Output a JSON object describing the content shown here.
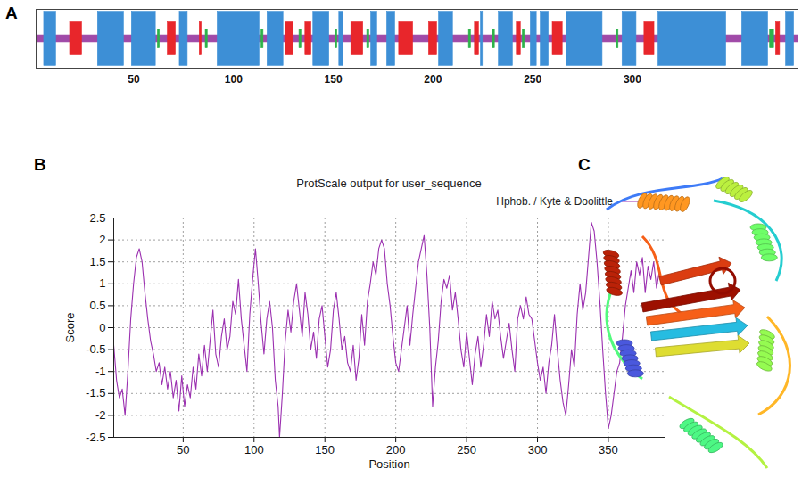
{
  "chart_data": [
    {
      "type": "track",
      "panel_label": "A",
      "xlim": [
        1,
        383
      ],
      "xticks": [
        50,
        100,
        150,
        200,
        250,
        300
      ],
      "tick_labels": "x",
      "series": [
        {
          "color": "#a04aa8",
          "segments": [
            [
              1,
              383
            ]
          ]
        },
        {
          "color": "#3d8fd6",
          "segments": [
            [
              5,
              11
            ],
            [
              32,
              45
            ],
            [
              49,
              61
            ],
            [
              73,
              77
            ],
            [
              92,
              113
            ],
            [
              117,
              125
            ],
            [
              140,
              148
            ],
            [
              153,
              155
            ],
            [
              169,
              172
            ],
            [
              177,
              181
            ],
            [
              203,
              210
            ],
            [
              224,
              225
            ],
            [
              233,
              240
            ],
            [
              249,
              252
            ],
            [
              254,
              258
            ],
            [
              267,
              285
            ],
            [
              295,
              302
            ],
            [
              313,
              347
            ],
            [
              355,
              368
            ],
            [
              377,
              381
            ]
          ]
        },
        {
          "color": "#e8262b",
          "segments": [
            [
              18,
              24
            ],
            [
              67,
              71
            ],
            [
              83,
              84
            ],
            [
              126,
              130
            ],
            [
              136,
              139
            ],
            [
              159,
              165
            ],
            [
              183,
              190
            ],
            [
              198,
              202
            ],
            [
              221,
              223
            ],
            [
              242,
              244
            ],
            [
              260,
              265
            ],
            [
              306,
              311
            ],
            [
              372,
              374
            ]
          ]
        },
        {
          "color": "#2db34a",
          "segments": [
            [
              62,
              63
            ],
            [
              86,
              87
            ],
            [
              114,
              115
            ],
            [
              133,
              134
            ],
            [
              151,
              152
            ],
            [
              167,
              168
            ],
            [
              218,
              219
            ],
            [
              230,
              231
            ],
            [
              245,
              246
            ],
            [
              292,
              293
            ],
            [
              369,
              371
            ]
          ]
        }
      ]
    },
    {
      "type": "line",
      "panel_label": "B",
      "title": "ProtScale output for user_sequence",
      "x_label": "Position",
      "y_label": "Score",
      "xlim": [
        1,
        390
      ],
      "xticks": [
        50,
        100,
        150,
        200,
        250,
        300,
        350
      ],
      "ylim": [
        -2.5,
        2.5
      ],
      "yticks": [
        -2.5,
        -2,
        -1.5,
        -1,
        -0.5,
        0,
        0.5,
        1,
        1.5,
        2,
        2.5
      ],
      "grid": true,
      "legend": "top",
      "series": [
        {
          "name": "Hphob. / Kyte & Doolittle",
          "color": "#9b30b0",
          "x": [
            1,
            3,
            5,
            7,
            9,
            11,
            13,
            15,
            17,
            19,
            21,
            23,
            25,
            27,
            29,
            31,
            33,
            35,
            37,
            39,
            41,
            43,
            45,
            47,
            49,
            51,
            53,
            55,
            57,
            59,
            61,
            63,
            65,
            67,
            69,
            71,
            73,
            75,
            77,
            79,
            81,
            83,
            85,
            87,
            89,
            91,
            93,
            95,
            97,
            99,
            101,
            103,
            105,
            107,
            109,
            111,
            113,
            115,
            117,
            118,
            120,
            122,
            124,
            126,
            128,
            130,
            132,
            134,
            136,
            138,
            140,
            142,
            144,
            146,
            148,
            150,
            152,
            154,
            156,
            158,
            160,
            162,
            164,
            166,
            168,
            170,
            172,
            174,
            176,
            178,
            180,
            182,
            184,
            186,
            188,
            190,
            192,
            194,
            196,
            198,
            200,
            202,
            204,
            206,
            208,
            210,
            212,
            214,
            216,
            218,
            220,
            222,
            224,
            226,
            228,
            230,
            232,
            234,
            236,
            238,
            240,
            242,
            244,
            246,
            248,
            250,
            252,
            254,
            256,
            258,
            260,
            262,
            264,
            266,
            268,
            270,
            272,
            274,
            276,
            278,
            280,
            282,
            284,
            286,
            288,
            290,
            292,
            294,
            296,
            298,
            300,
            302,
            304,
            306,
            308,
            310,
            312,
            314,
            316,
            318,
            320,
            322,
            324,
            326,
            328,
            330,
            332,
            334,
            336,
            338,
            340,
            342,
            344,
            346,
            348,
            350,
            352,
            354,
            356,
            358,
            360,
            362,
            364,
            366,
            368,
            370,
            372,
            374,
            376,
            378,
            380,
            382,
            384,
            386,
            388,
            390
          ],
          "values": [
            -0.4,
            -1.2,
            -1.6,
            -1.4,
            -2.0,
            -1.0,
            0.2,
            1.0,
            1.6,
            1.8,
            1.5,
            0.8,
            0.2,
            -0.3,
            -0.6,
            -1.0,
            -0.8,
            -1.3,
            -0.9,
            -1.4,
            -1.0,
            -1.6,
            -1.2,
            -1.9,
            -1.1,
            -1.8,
            -1.3,
            -1.6,
            -0.9,
            -1.4,
            -0.6,
            -1.1,
            -0.4,
            -1.0,
            -0.3,
            0.4,
            -0.6,
            -0.9,
            -0.2,
            0.2,
            -0.5,
            -0.2,
            0.6,
            0.3,
            1.1,
            0.2,
            -0.4,
            -1.0,
            0.3,
            1.1,
            1.8,
            1.0,
            0.1,
            -0.6,
            0.2,
            0.6,
            0.0,
            -1.2,
            -1.8,
            -2.5,
            -1.5,
            -0.3,
            0.4,
            -0.1,
            0.6,
            1.0,
            0.4,
            -0.2,
            0.8,
            0.3,
            -0.5,
            -0.1,
            -0.7,
            0.2,
            0.5,
            -0.2,
            -0.9,
            -0.5,
            0.4,
            0.8,
            0.2,
            -0.5,
            -0.2,
            -0.8,
            -1.0,
            -0.4,
            -1.2,
            -0.7,
            0.3,
            -0.4,
            0.6,
            1.0,
            1.5,
            1.2,
            1.8,
            2.0,
            1.8,
            1.0,
            0.5,
            -0.2,
            -0.8,
            -1.0,
            -0.5,
            0.0,
            0.5,
            -0.4,
            0.3,
            0.9,
            1.5,
            1.8,
            2.1,
            1.2,
            0.0,
            -1.8,
            -0.9,
            -0.3,
            0.6,
            1.1,
            0.9,
            1.2,
            0.4,
            0.8,
            0.2,
            -0.5,
            -0.9,
            -0.1,
            -0.7,
            -1.3,
            -0.6,
            -0.2,
            -0.9,
            -0.4,
            0.3,
            -0.2,
            0.6,
            0.2,
            0.4,
            -0.2,
            -0.7,
            -0.3,
            0.1,
            -0.5,
            -1.0,
            0.2,
            0.5,
            0.2,
            0.7,
            0.3,
            0.2,
            -0.3,
            -0.8,
            -1.2,
            -0.9,
            -1.5,
            -0.8,
            -0.4,
            0.3,
            -0.5,
            -1.2,
            -1.7,
            -2.0,
            -1.3,
            -0.5,
            -0.9,
            0.3,
            1.0,
            0.4,
            0.8,
            1.6,
            2.4,
            2.2,
            1.5,
            0.6,
            -0.5,
            -1.5,
            -2.3,
            -2.0,
            -1.5,
            -1.0,
            -0.8,
            -0.2,
            0.5,
            0.9,
            1.3,
            0.8,
            1.5,
            1.2,
            1.6,
            0.8,
            1.4,
            1.1,
            1.5,
            0.9,
            1.3,
            1.0,
            1.0
          ]
        }
      ]
    },
    {
      "type": "image",
      "panel_label": "C"
    }
  ]
}
